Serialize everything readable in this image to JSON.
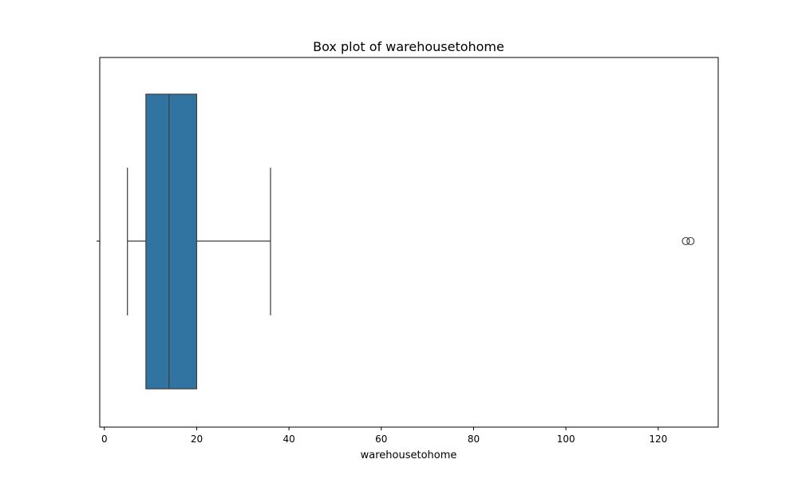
{
  "chart_data": {
    "type": "box",
    "title": "Box plot of warehousetohome",
    "xlabel": "warehousetohome",
    "ylabel": "",
    "orientation": "horizontal",
    "xlim": [
      -1,
      133
    ],
    "x_ticks": [
      0,
      20,
      40,
      60,
      80,
      100,
      120
    ],
    "x_tick_labels": [
      "0",
      "20",
      "40",
      "60",
      "80",
      "100",
      "120"
    ],
    "grid": false,
    "series": [
      {
        "whisker_low": 5,
        "q1": 9,
        "median": 14,
        "q3": 20,
        "whisker_high": 36,
        "outliers": [
          126,
          127
        ],
        "color": "#3274a1"
      }
    ]
  }
}
